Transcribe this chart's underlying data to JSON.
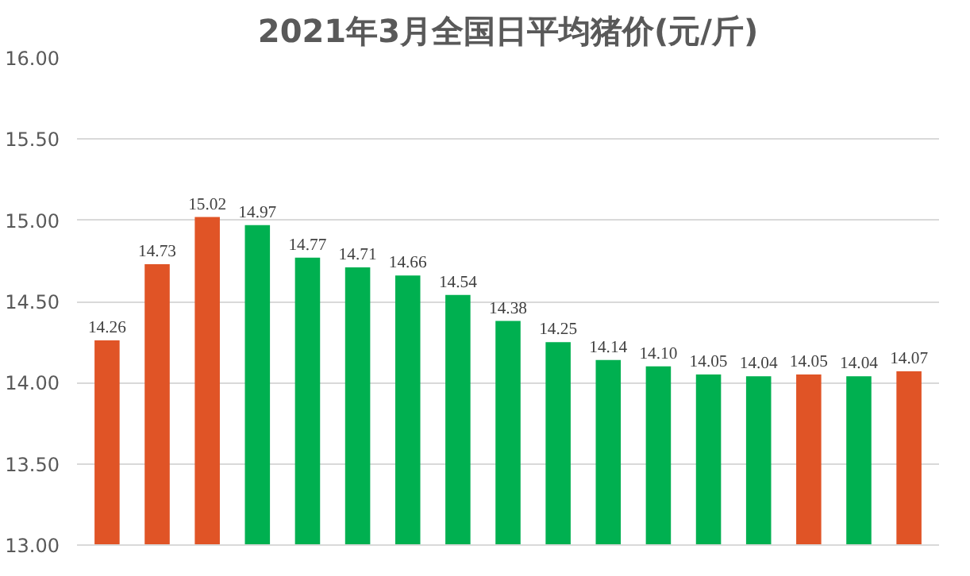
{
  "chart_data": {
    "type": "bar",
    "title": "2021年3月全国日平均猪价(元/斤)",
    "categories": [
      null,
      null,
      null,
      null,
      null,
      null,
      null,
      null,
      null,
      null,
      null,
      null,
      null,
      null,
      null,
      null,
      null
    ],
    "values": [
      14.26,
      14.73,
      15.02,
      14.97,
      14.77,
      14.71,
      14.66,
      14.54,
      14.38,
      14.25,
      14.14,
      14.1,
      14.05,
      14.04,
      14.05,
      14.04,
      14.07
    ],
    "value_labels": [
      "14.26",
      "14.73",
      "15.02",
      "14.97",
      "14.77",
      "14.71",
      "14.66",
      "14.54",
      "14.38",
      "14.25",
      "14.14",
      "14.10",
      "14.05",
      "14.04",
      "14.05",
      "14.04",
      "14.07"
    ],
    "colors": [
      "#e05426",
      "#e05426",
      "#e05426",
      "#00b050",
      "#00b050",
      "#00b050",
      "#00b050",
      "#00b050",
      "#00b050",
      "#00b050",
      "#00b050",
      "#00b050",
      "#00b050",
      "#00b050",
      "#e05426",
      "#00b050",
      "#e05426"
    ],
    "ylim": [
      13.0,
      16.0
    ],
    "yticks": [
      {
        "value": 13.0,
        "label": "13.00"
      },
      {
        "value": 13.5,
        "label": "13.50"
      },
      {
        "value": 14.0,
        "label": "14.00"
      },
      {
        "value": 14.5,
        "label": "14.50"
      },
      {
        "value": 15.0,
        "label": "15.00"
      },
      {
        "value": 15.5,
        "label": "15.50"
      },
      {
        "value": 16.0,
        "label": "16.00"
      }
    ],
    "grid": "y",
    "tick_labels": "y"
  }
}
